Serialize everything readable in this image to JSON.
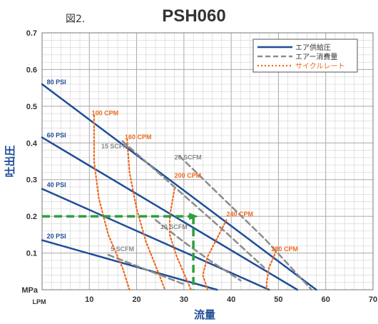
{
  "figure_label": "図2.",
  "chart_data": {
    "type": "line",
    "title": "PSH060",
    "xlabel": "流量",
    "ylabel": "吐出圧",
    "x_unit": "LPM",
    "y_unit": "MPa",
    "xlim": [
      0,
      70
    ],
    "ylim": [
      0,
      0.7
    ],
    "x_ticks": [
      10,
      20,
      30,
      40,
      50,
      60,
      70
    ],
    "y_ticks": [
      0.1,
      0.2,
      0.3,
      0.4,
      0.5,
      0.6,
      0.7
    ],
    "grid": true,
    "legend_position": "top-right",
    "legend": [
      {
        "label": "エア供給圧",
        "color": "#1f4e96",
        "style": "solid"
      },
      {
        "label": "エアー消費量",
        "color": "#8c8c8c",
        "style": "dashed"
      },
      {
        "label": "サイクルレート",
        "color": "#ee6a1f",
        "style": "dotted"
      }
    ],
    "colors": {
      "supply": "#1f4e96",
      "consumption": "#8c8c8c",
      "cycle": "#ee6a1f",
      "operating_point": "#2e9e3e",
      "grid": "#c8c8c8"
    },
    "series": [
      {
        "name": "80 PSI",
        "group": "エア供給圧",
        "x": [
          0,
          58
        ],
        "y": [
          0.56,
          0.0
        ]
      },
      {
        "name": "60 PSI",
        "group": "エア供給圧",
        "x": [
          0,
          54
        ],
        "y": [
          0.415,
          0.0
        ]
      },
      {
        "name": "40 PSI",
        "group": "エア供給圧",
        "x": [
          0,
          48
        ],
        "y": [
          0.275,
          0.0
        ]
      },
      {
        "name": "20 PSI",
        "group": "エア供給圧",
        "x": [
          0,
          37
        ],
        "y": [
          0.135,
          0.0
        ]
      },
      {
        "name": "5 SCFM",
        "group": "エアー消費量",
        "x": [
          14,
          19,
          24,
          30
        ],
        "y": [
          0.095,
          0.07,
          0.045,
          0.015
        ]
      },
      {
        "name": "10 SCFM",
        "group": "エアー消費量",
        "x": [
          24,
          30,
          36,
          42
        ],
        "y": [
          0.19,
          0.13,
          0.075,
          0.025
        ]
      },
      {
        "name": "15 SCFM",
        "group": "エアー消費量",
        "x": [
          17,
          28,
          39,
          47
        ],
        "y": [
          0.405,
          0.28,
          0.155,
          0.06
        ]
      },
      {
        "name": "20 SCFM",
        "group": "エアー消費量",
        "x": [
          29,
          39,
          47,
          57
        ],
        "y": [
          0.365,
          0.24,
          0.14,
          0.0
        ]
      },
      {
        "name": "100 CPM",
        "group": "サイクルレート",
        "x": [
          11,
          11,
          12,
          14,
          17,
          18.5
        ],
        "y": [
          0.475,
          0.35,
          0.25,
          0.15,
          0.06,
          0.0
        ]
      },
      {
        "name": "160 CPM",
        "group": "サイクルレート",
        "x": [
          18,
          18.5,
          20,
          22,
          24.5,
          26
        ],
        "y": [
          0.41,
          0.32,
          0.22,
          0.13,
          0.05,
          0.0
        ]
      },
      {
        "name": "200 CPM",
        "group": "サイクルレート",
        "x": [
          28,
          27,
          27,
          28.5,
          30.5,
          31.5
        ],
        "y": [
          0.275,
          0.2,
          0.15,
          0.09,
          0.03,
          0.0
        ]
      },
      {
        "name": "240 CPM",
        "group": "サイクルレート",
        "x": [
          39,
          37,
          35,
          34,
          35
        ],
        "y": [
          0.19,
          0.14,
          0.09,
          0.04,
          0.0
        ]
      },
      {
        "name": "280 CPM",
        "group": "サイクルレート",
        "x": [
          49.5,
          48,
          47.5,
          47.5
        ],
        "y": [
          0.105,
          0.06,
          0.02,
          0.0
        ]
      }
    ],
    "annotations": [
      {
        "text": "80 PSI",
        "x": 1,
        "y": 0.56,
        "color": "#1f4e96"
      },
      {
        "text": "60 PSI",
        "x": 1,
        "y": 0.415,
        "color": "#1f4e96"
      },
      {
        "text": "40 PSI",
        "x": 1,
        "y": 0.28,
        "color": "#1f4e96"
      },
      {
        "text": "20 PSI",
        "x": 1,
        "y": 0.14,
        "color": "#1f4e96"
      },
      {
        "text": "100 CPM",
        "x": 10.5,
        "y": 0.475,
        "color": "#ee6a1f"
      },
      {
        "text": "160 CPM",
        "x": 17.5,
        "y": 0.41,
        "color": "#ee6a1f"
      },
      {
        "text": "15 SCFM",
        "x": 12.5,
        "y": 0.385,
        "color": "#888888"
      },
      {
        "text": "20 SCFM",
        "x": 28,
        "y": 0.355,
        "color": "#888888"
      },
      {
        "text": "200 CPM",
        "x": 28,
        "y": 0.305,
        "color": "#ee6a1f"
      },
      {
        "text": "240 CPM",
        "x": 39,
        "y": 0.2,
        "color": "#ee6a1f"
      },
      {
        "text": "10 SCFM",
        "x": 25,
        "y": 0.165,
        "color": "#888888"
      },
      {
        "text": "5 SCFM",
        "x": 14.5,
        "y": 0.105,
        "color": "#888888"
      },
      {
        "text": "280 CPM",
        "x": 48.5,
        "y": 0.105,
        "color": "#ee6a1f"
      }
    ],
    "operating_point": {
      "x": 32,
      "y": 0.2
    }
  }
}
